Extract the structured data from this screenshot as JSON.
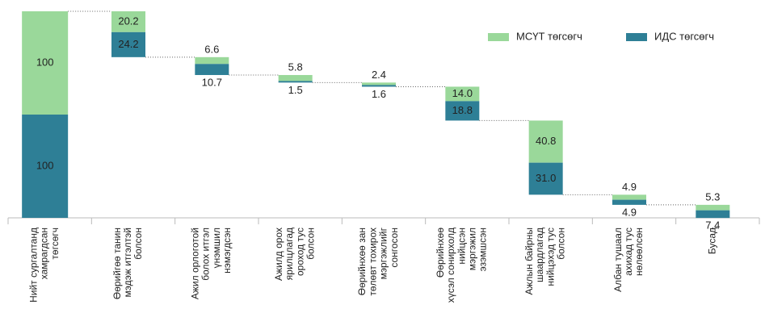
{
  "chart_data": {
    "type": "waterfall",
    "categories": [
      "Нийт сургалтанд\nхамрагдсан\nтөгсөгч",
      "Өөрийгөө танин\nмэдэж итгэлтэй\nболсон",
      "Ажил орлоготой\nболох итгэл\nүнэмшил\nнэмэгдсэн",
      "Ажилд орох\nярилцлагад\nороход тус\nболсон",
      "Өөрийнхөө зан\nтөлөвт тохирох\nмэргэжлийг\nсонгосон",
      "Өөрийнхөө\nхүсэл сонирхолд\nнийцсэн\nмэргэжил\nэзэмшсэн",
      "Ажлын байрны\nшаардлагад\nнийцэхэд тус\nболсон",
      "Албан тушаал\nахихад тус\nнөлөөлсөн",
      "Бусад"
    ],
    "series": [
      {
        "name": "ИДС төгсөгч",
        "color": "#2e7f96",
        "values": [
          100,
          24.2,
          10.7,
          1.5,
          1.6,
          18.8,
          31.0,
          4.9,
          7.4
        ],
        "value_labels": [
          "100",
          "24.2",
          "10.7",
          "1.5",
          "1.6",
          "18.8",
          "31.0",
          "4.9",
          "7.4"
        ]
      },
      {
        "name": "МСҮТ төгсөгч",
        "color": "#9ad89a",
        "values": [
          100,
          20.2,
          6.6,
          5.8,
          2.4,
          14.0,
          40.8,
          4.9,
          5.3
        ],
        "value_labels": [
          "100",
          "20.2",
          "6.6",
          "5.8",
          "2.4",
          "14.0",
          "40.8",
          "4.9",
          "5.3"
        ]
      }
    ],
    "ylim": [
      0,
      200
    ]
  }
}
